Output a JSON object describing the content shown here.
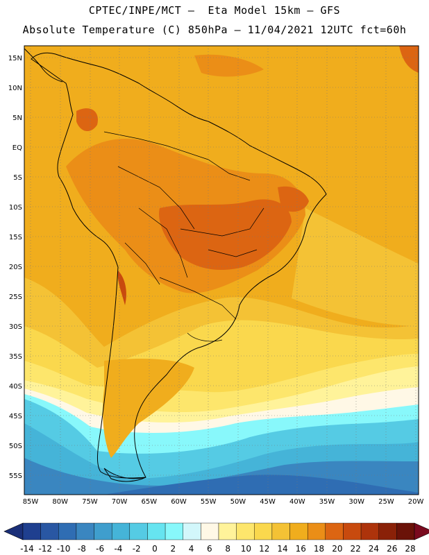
{
  "header": {
    "line1": "CPTEC/INPE/MCT –  Eta Model 15km – GFS",
    "line2": "Absolute Temperature (C) 850hPa – 11/04/2021 12UTC fct=60h"
  },
  "axes": {
    "lat_labels": [
      "15N",
      "10N",
      "5N",
      "EQ",
      "5S",
      "10S",
      "15S",
      "20S",
      "25S",
      "30S",
      "35S",
      "40S",
      "45S",
      "50S",
      "55S"
    ],
    "lon_labels": [
      "85W",
      "80W",
      "75W",
      "70W",
      "65W",
      "60W",
      "55W",
      "50W",
      "45W",
      "40W",
      "35W",
      "30W",
      "25W",
      "20W"
    ]
  },
  "colorbar": {
    "labels": [
      "-14",
      "-12",
      "-10",
      "-8",
      "-6",
      "-4",
      "-2",
      "0",
      "2",
      "4",
      "6",
      "8",
      "10",
      "12",
      "14",
      "16",
      "18",
      "20",
      "22",
      "24",
      "26",
      "28"
    ],
    "colors": [
      "#1f3f8f",
      "#2957a3",
      "#2f6db3",
      "#3a86c0",
      "#3f9ecd",
      "#45b4d8",
      "#55cbe4",
      "#66e4f0",
      "#88f8fb",
      "#d2f7fb",
      "#fff8e6",
      "#fff39a",
      "#fde66c",
      "#fad84d",
      "#f4c235",
      "#f0ad1d",
      "#eb8e17",
      "#dc6512",
      "#c84a0e",
      "#ad330b",
      "#8a2108",
      "#6a1208"
    ],
    "under_color": "#1a2f78",
    "over_color": "#7a0a1e"
  },
  "colors": {
    "background": "#f0ad1d",
    "outline": "#000000"
  }
}
